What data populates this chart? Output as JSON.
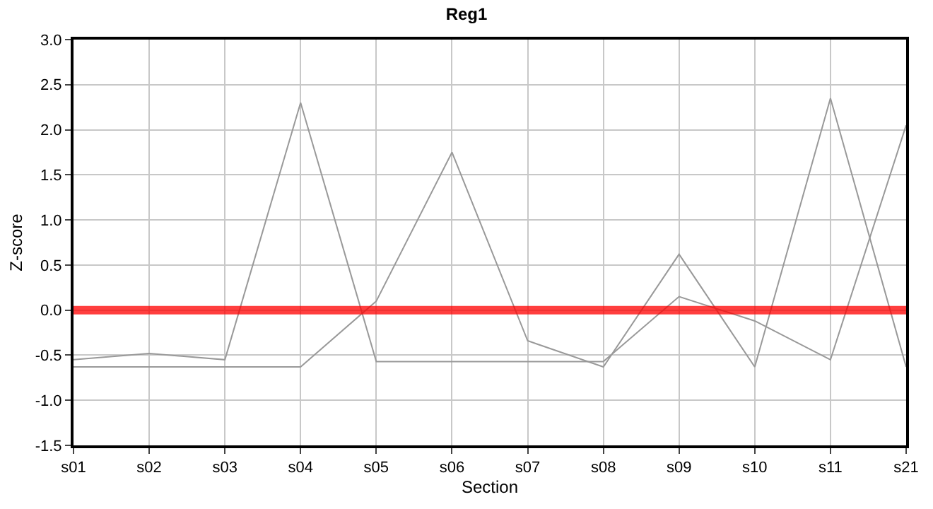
{
  "chart_data": {
    "type": "line",
    "title": "Reg1",
    "xlabel": "Section",
    "ylabel": "Z-score",
    "categories": [
      "s01",
      "s02",
      "s03",
      "s04",
      "s05",
      "s06",
      "s07",
      "s08",
      "s09",
      "s10",
      "s11",
      "s21"
    ],
    "series": [
      {
        "color": "#999999",
        "values": [
          -0.55,
          -0.48,
          -0.55,
          2.3,
          -0.57,
          -0.57,
          -0.57,
          -0.57,
          0.15,
          -0.12,
          -0.55,
          2.05
        ]
      },
      {
        "color": "#999999",
        "values": [
          -0.63,
          -0.63,
          -0.63,
          -0.63,
          0.1,
          1.75,
          -0.34,
          -0.63,
          0.62,
          -0.63,
          2.35,
          -0.63
        ]
      }
    ],
    "ylim": [
      -1.5,
      3.0
    ],
    "yticks": [
      {
        "value": -1.5,
        "label": "-1.5"
      },
      {
        "value": -1.0,
        "label": "-1.0"
      },
      {
        "value": -0.5,
        "label": "-0.5"
      },
      {
        "value": 0.0,
        "label": "0.0"
      },
      {
        "value": 0.5,
        "label": "0.5"
      },
      {
        "value": 1.0,
        "label": "1.0"
      },
      {
        "value": 1.5,
        "label": "1.5"
      },
      {
        "value": 2.0,
        "label": "2.0"
      },
      {
        "value": 2.5,
        "label": "2.5"
      },
      {
        "value": 3.0,
        "label": "3.0"
      }
    ],
    "ref_lines": [
      {
        "axis": "y",
        "value": 0,
        "color": "#ff0000"
      }
    ],
    "grid": true,
    "marker": "none",
    "line_style": "solid"
  }
}
